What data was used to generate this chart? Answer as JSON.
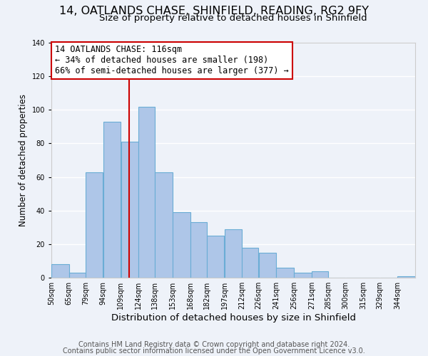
{
  "title": "14, OATLANDS CHASE, SHINFIELD, READING, RG2 9FY",
  "subtitle": "Size of property relative to detached houses in Shinfield",
  "xlabel": "Distribution of detached houses by size in Shinfield",
  "ylabel": "Number of detached properties",
  "footer_line1": "Contains HM Land Registry data © Crown copyright and database right 2024.",
  "footer_line2": "Contains public sector information licensed under the Open Government Licence v3.0.",
  "bin_labels": [
    "50sqm",
    "65sqm",
    "79sqm",
    "94sqm",
    "109sqm",
    "124sqm",
    "138sqm",
    "153sqm",
    "168sqm",
    "182sqm",
    "197sqm",
    "212sqm",
    "226sqm",
    "241sqm",
    "256sqm",
    "271sqm",
    "285sqm",
    "300sqm",
    "315sqm",
    "329sqm",
    "344sqm"
  ],
  "bin_edges": [
    50,
    65,
    79,
    94,
    109,
    124,
    138,
    153,
    168,
    182,
    197,
    212,
    226,
    241,
    256,
    271,
    285,
    300,
    315,
    329,
    344,
    359
  ],
  "bar_values": [
    8,
    3,
    63,
    93,
    81,
    102,
    63,
    39,
    33,
    25,
    29,
    18,
    15,
    6,
    3,
    4,
    0,
    0,
    0,
    0,
    1
  ],
  "bar_color": "#aec6e8",
  "bar_edgecolor": "#6aadd5",
  "annotation_title": "14 OATLANDS CHASE: 116sqm",
  "annotation_line1": "← 34% of detached houses are smaller (198)",
  "annotation_line2": "66% of semi-detached houses are larger (377) →",
  "property_line_x": 116,
  "ylim": [
    0,
    140
  ],
  "yticks": [
    0,
    20,
    40,
    60,
    80,
    100,
    120,
    140
  ],
  "background_color": "#eef2f9",
  "annotation_box_color": "#ffffff",
  "annotation_box_edgecolor": "#cc0000",
  "vline_color": "#cc0000",
  "grid_color": "#ffffff",
  "title_fontsize": 11.5,
  "subtitle_fontsize": 9.5,
  "xlabel_fontsize": 9.5,
  "ylabel_fontsize": 8.5,
  "tick_fontsize": 7,
  "annotation_fontsize": 8.5,
  "footer_fontsize": 7
}
